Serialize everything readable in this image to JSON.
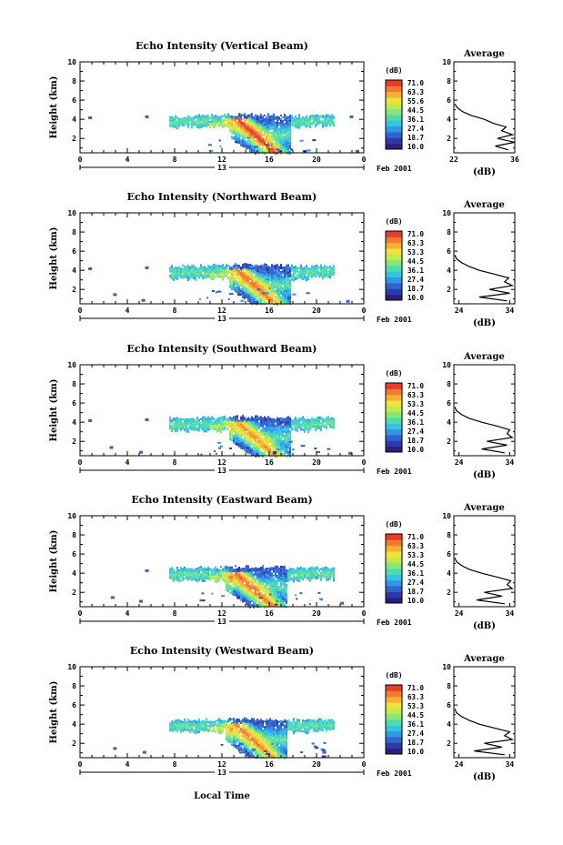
{
  "chart_data": [
    {
      "type": "heatmap",
      "title": "Echo Intensity (Vertical Beam)",
      "ylabel": "Height (km)",
      "x_ticks": [
        "0",
        "4",
        "8",
        "12",
        "16",
        "20",
        "0"
      ],
      "y_ticks": [
        "2",
        "4",
        "6",
        "8",
        "10"
      ],
      "day_label": "13",
      "date_label": "Feb 2001",
      "xlim": [
        0,
        24
      ],
      "ylim": [
        0.5,
        10
      ],
      "colorbar": {
        "unit": "(dB)",
        "ticks": [
          "71.0",
          "63.3",
          "55.6",
          "44.5",
          "36.1",
          "27.4",
          "18.7",
          "10.0"
        ]
      },
      "cloud": {
        "top_km": 4.5,
        "base_start_hr": 7.5,
        "base_end_hr": 21.5,
        "anvil_base_km": 3.3,
        "core_hr": 16.5,
        "core_dbz": 70
      },
      "isolated_echoes": [
        {
          "hr": 0.7,
          "km": 4.3
        },
        {
          "hr": 5.5,
          "km": 4.4
        },
        {
          "hr": 22.8,
          "km": 4.4
        },
        {
          "hr": 23.3,
          "km": 0.8
        }
      ],
      "average_profile": {
        "title": "Average",
        "xlabel": "(dB)",
        "x_ticks": [
          "22",
          "36"
        ],
        "xlim": [
          22,
          36
        ],
        "y_ticks": [
          "2",
          "4",
          "6",
          "8",
          "10"
        ],
        "height_km": [
          0.8,
          1.2,
          1.6,
          2.0,
          2.4,
          2.8,
          3.2,
          3.6,
          4.0,
          4.4,
          4.8,
          5.2,
          5.6
        ],
        "value_db": [
          34.5,
          31.5,
          36.0,
          32.0,
          35.5,
          33.0,
          34.0,
          31.0,
          29.0,
          26.0,
          24.0,
          22.8,
          22.2
        ]
      }
    },
    {
      "type": "heatmap",
      "title": "Echo Intensity (Northward Beam)",
      "ylabel": "Height (km)",
      "x_ticks": [
        "0",
        "4",
        "8",
        "12",
        "16",
        "20",
        "0"
      ],
      "y_ticks": [
        "2",
        "4",
        "6",
        "8",
        "10"
      ],
      "day_label": "13",
      "date_label": "Feb 2001",
      "xlim": [
        0,
        24
      ],
      "ylim": [
        0.5,
        10
      ],
      "colorbar": {
        "unit": "(dB)",
        "ticks": [
          "71.0",
          "63.3",
          "53.3",
          "44.5",
          "36.1",
          "27.4",
          "18.7",
          "10.0"
        ]
      },
      "cloud": {
        "top_km": 4.6,
        "base_start_hr": 7.5,
        "base_end_hr": 21.5,
        "anvil_base_km": 3.2,
        "core_hr": 16.5,
        "core_dbz": 65
      },
      "isolated_echoes": [
        {
          "hr": 0.7,
          "km": 4.3
        },
        {
          "hr": 5.5,
          "km": 4.4
        },
        {
          "hr": 2.8,
          "km": 1.6
        },
        {
          "hr": 5.2,
          "km": 1.0
        },
        {
          "hr": 22.5,
          "km": 0.9
        }
      ],
      "average_profile": {
        "title": "Average",
        "xlabel": "(dB)",
        "x_ticks": [
          "24",
          "34"
        ],
        "xlim": [
          23,
          35
        ],
        "y_ticks": [
          "2",
          "4",
          "6",
          "8",
          "10"
        ],
        "height_km": [
          0.8,
          1.2,
          1.6,
          2.0,
          2.4,
          2.8,
          3.2,
          3.6,
          4.0,
          4.4,
          4.8,
          5.2,
          5.6
        ],
        "value_db": [
          33.5,
          28.0,
          34.0,
          30.0,
          34.5,
          33.0,
          33.8,
          31.0,
          28.0,
          26.0,
          24.5,
          23.5,
          23.2
        ]
      }
    },
    {
      "type": "heatmap",
      "title": "Echo Intensity (Southward Beam)",
      "ylabel": "Height (km)",
      "x_ticks": [
        "0",
        "4",
        "8",
        "12",
        "16",
        "20",
        "0"
      ],
      "y_ticks": [
        "2",
        "4",
        "6",
        "8",
        "10"
      ],
      "day_label": "13",
      "date_label": "Feb 2001",
      "xlim": [
        0,
        24
      ],
      "ylim": [
        0.5,
        10
      ],
      "colorbar": {
        "unit": "(dB)",
        "ticks": [
          "71.0",
          "63.3",
          "53.3",
          "44.5",
          "36.1",
          "27.4",
          "18.7",
          "10.0"
        ]
      },
      "cloud": {
        "top_km": 4.6,
        "base_start_hr": 7.5,
        "base_end_hr": 21.5,
        "anvil_base_km": 3.2,
        "core_hr": 16.5,
        "core_dbz": 62
      },
      "isolated_echoes": [
        {
          "hr": 0.7,
          "km": 4.3
        },
        {
          "hr": 5.5,
          "km": 4.4
        },
        {
          "hr": 2.5,
          "km": 1.5
        },
        {
          "hr": 5.0,
          "km": 1.0
        },
        {
          "hr": 22.7,
          "km": 0.9
        }
      ],
      "average_profile": {
        "title": "Average",
        "xlabel": "(dB)",
        "x_ticks": [
          "24",
          "34"
        ],
        "xlim": [
          23,
          35
        ],
        "y_ticks": [
          "2",
          "4",
          "6",
          "8",
          "10"
        ],
        "height_km": [
          0.8,
          1.2,
          1.6,
          2.0,
          2.4,
          2.8,
          3.2,
          3.6,
          4.0,
          4.4,
          4.8,
          5.2,
          5.6
        ],
        "value_db": [
          33.0,
          28.5,
          33.5,
          29.5,
          34.5,
          33.5,
          34.0,
          31.5,
          28.5,
          26.0,
          24.5,
          23.5,
          23.2
        ]
      }
    },
    {
      "type": "heatmap",
      "title": "Echo Intensity (Eastward Beam)",
      "ylabel": "Height (km)",
      "x_ticks": [
        "0",
        "4",
        "8",
        "12",
        "16",
        "20",
        "0"
      ],
      "y_ticks": [
        "2",
        "4",
        "6",
        "8",
        "10"
      ],
      "day_label": "13",
      "date_label": "Feb 2001",
      "xlim": [
        0,
        24
      ],
      "ylim": [
        0.5,
        10
      ],
      "colorbar": {
        "unit": "(dB)",
        "ticks": [
          "71.0",
          "63.3",
          "53.3",
          "44.5",
          "36.1",
          "27.4",
          "18.7",
          "10.0"
        ]
      },
      "cloud": {
        "top_km": 4.7,
        "base_start_hr": 7.5,
        "base_end_hr": 21.5,
        "anvil_base_km": 3.3,
        "core_hr": 16.3,
        "core_dbz": 66
      },
      "isolated_echoes": [
        {
          "hr": 5.5,
          "km": 4.4
        },
        {
          "hr": 2.6,
          "km": 1.6
        },
        {
          "hr": 5.0,
          "km": 1.2
        },
        {
          "hr": 22.0,
          "km": 1.0
        }
      ],
      "average_profile": {
        "title": "Average",
        "xlabel": "(dB)",
        "x_ticks": [
          "24",
          "34"
        ],
        "xlim": [
          23,
          35
        ],
        "y_ticks": [
          "2",
          "4",
          "6",
          "8",
          "10"
        ],
        "height_km": [
          0.8,
          1.2,
          1.6,
          2.0,
          2.4,
          2.8,
          3.2,
          3.6,
          4.0,
          4.4,
          4.8,
          5.2,
          5.6
        ],
        "value_db": [
          33.0,
          27.5,
          32.5,
          29.0,
          34.5,
          33.5,
          34.2,
          31.5,
          28.5,
          26.0,
          24.5,
          23.5,
          23.2
        ]
      }
    },
    {
      "type": "heatmap",
      "title": "Echo Intensity (Westward Beam)",
      "ylabel": "Height (km)",
      "x_ticks": [
        "0",
        "4",
        "8",
        "12",
        "16",
        "20",
        "0"
      ],
      "y_ticks": [
        "2",
        "4",
        "6",
        "8",
        "10"
      ],
      "day_label": "13",
      "date_label": "Feb 2001",
      "xlim": [
        0,
        24
      ],
      "ylim": [
        0.5,
        10
      ],
      "colorbar": {
        "unit": "(dB)",
        "ticks": [
          "71.0",
          "63.3",
          "53.3",
          "44.5",
          "36.1",
          "27.4",
          "18.7",
          "10.0"
        ]
      },
      "cloud": {
        "top_km": 4.6,
        "base_start_hr": 7.5,
        "base_end_hr": 21.5,
        "anvil_base_km": 3.3,
        "core_hr": 16.3,
        "core_dbz": 64
      },
      "isolated_echoes": [
        {
          "hr": 2.8,
          "km": 1.6
        },
        {
          "hr": 5.3,
          "km": 1.2
        },
        {
          "hr": 20.5,
          "km": 1.2
        }
      ],
      "average_profile": {
        "title": "Average",
        "xlabel": "(dB)",
        "x_ticks": [
          "24",
          "34"
        ],
        "xlim": [
          23,
          35
        ],
        "y_ticks": [
          "2",
          "4",
          "6",
          "8",
          "10"
        ],
        "height_km": [
          0.8,
          1.2,
          1.6,
          2.0,
          2.4,
          2.8,
          3.2,
          3.6,
          4.0,
          4.4,
          4.8,
          5.2,
          5.6
        ],
        "value_db": [
          33.0,
          27.0,
          32.5,
          29.0,
          34.5,
          33.0,
          34.0,
          31.0,
          28.0,
          26.0,
          24.5,
          23.5,
          23.2
        ]
      }
    }
  ],
  "xaxis_label": "Local Time",
  "colormap": [
    "#2a1f7a",
    "#2c3aa8",
    "#2f63cf",
    "#2f97e6",
    "#34c4e0",
    "#4fdbb0",
    "#85e67a",
    "#c2ea4a",
    "#f0e23a",
    "#f7b034",
    "#f47a2e",
    "#e83d2a"
  ]
}
